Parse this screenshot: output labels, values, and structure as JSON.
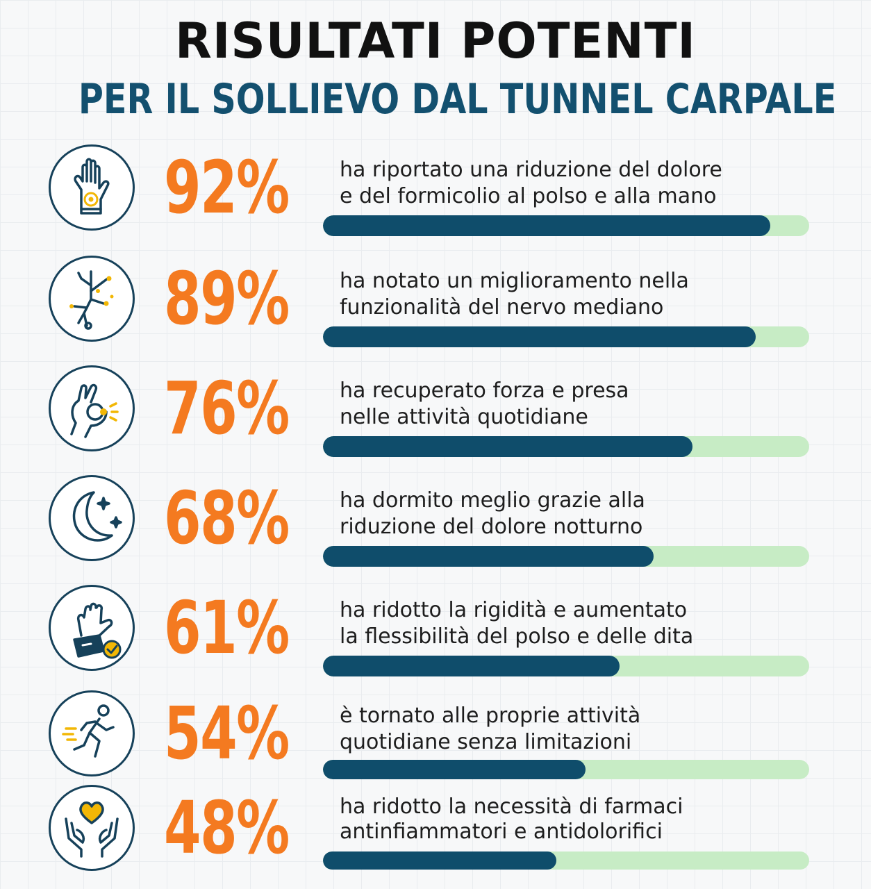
{
  "header": {
    "title": "RISULTATI POTENTI",
    "subtitle": "PER IL SOLLIEVO DAL TUNNEL CARPALE"
  },
  "colors": {
    "percent": "#f47a20",
    "bar_fill": "#0f4d6b",
    "bar_track": "#c7ecc5",
    "icon_stroke": "#16415a",
    "icon_accent": "#f2b705",
    "subtitle": "#13506f"
  },
  "stats": [
    {
      "icon": "hand-palm-icon",
      "percent_label": "92%",
      "value": 92,
      "line1": "ha riportato una riduzione del dolore",
      "line2": "e del formicolio al polso e alla mano"
    },
    {
      "icon": "nerve-icon",
      "percent_label": "89%",
      "value": 89,
      "line1": "ha notato un miglioramento nella",
      "line2": "funzionalità del nervo mediano"
    },
    {
      "icon": "ok-hand-grip-icon",
      "percent_label": "76%",
      "value": 76,
      "line1": "ha recuperato forza e presa",
      "line2": "nelle attività quotidiane"
    },
    {
      "icon": "moon-stars-icon",
      "percent_label": "68%",
      "value": 68,
      "line1": "ha dormito meglio grazie alla",
      "line2": "riduzione del dolore notturno"
    },
    {
      "icon": "wrist-brace-check-icon",
      "percent_label": "61%",
      "value": 61,
      "line1": "ha ridotto la rigidità e aumentato",
      "line2": "la flessibilità del polso e delle dita"
    },
    {
      "icon": "running-person-icon",
      "percent_label": "54%",
      "value": 54,
      "line1": "è tornato alle proprie attività",
      "line2": "quotidiane senza limitazioni"
    },
    {
      "icon": "hands-heart-icon",
      "percent_label": "48%",
      "value": 48,
      "line1": "ha ridotto la necessità di farmaci",
      "line2": "antinfiammatori e antidolorifici"
    }
  ]
}
